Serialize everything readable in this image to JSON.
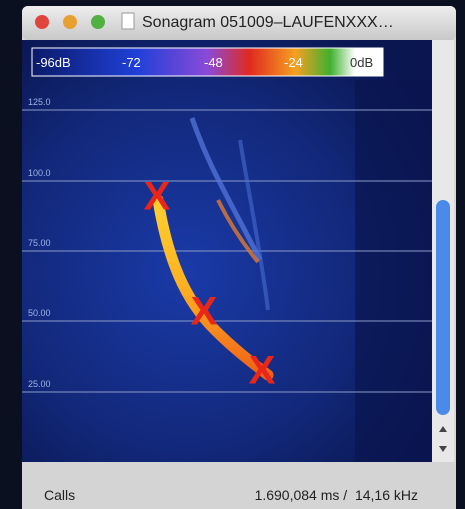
{
  "window": {
    "title": "Sonagram 051009–LAUFENXXX…"
  },
  "colorbar": {
    "labels": [
      "-96dB",
      "-72",
      "-48",
      "-24",
      "0dB"
    ]
  },
  "frequency_labels": [
    "125.0",
    "100.0",
    "75.00",
    "50.00",
    "25.00"
  ],
  "markers": [
    "X",
    "X",
    "X"
  ],
  "status": {
    "mode": "Calls",
    "position": "1.690,084 ms /  14,16 kHz"
  }
}
